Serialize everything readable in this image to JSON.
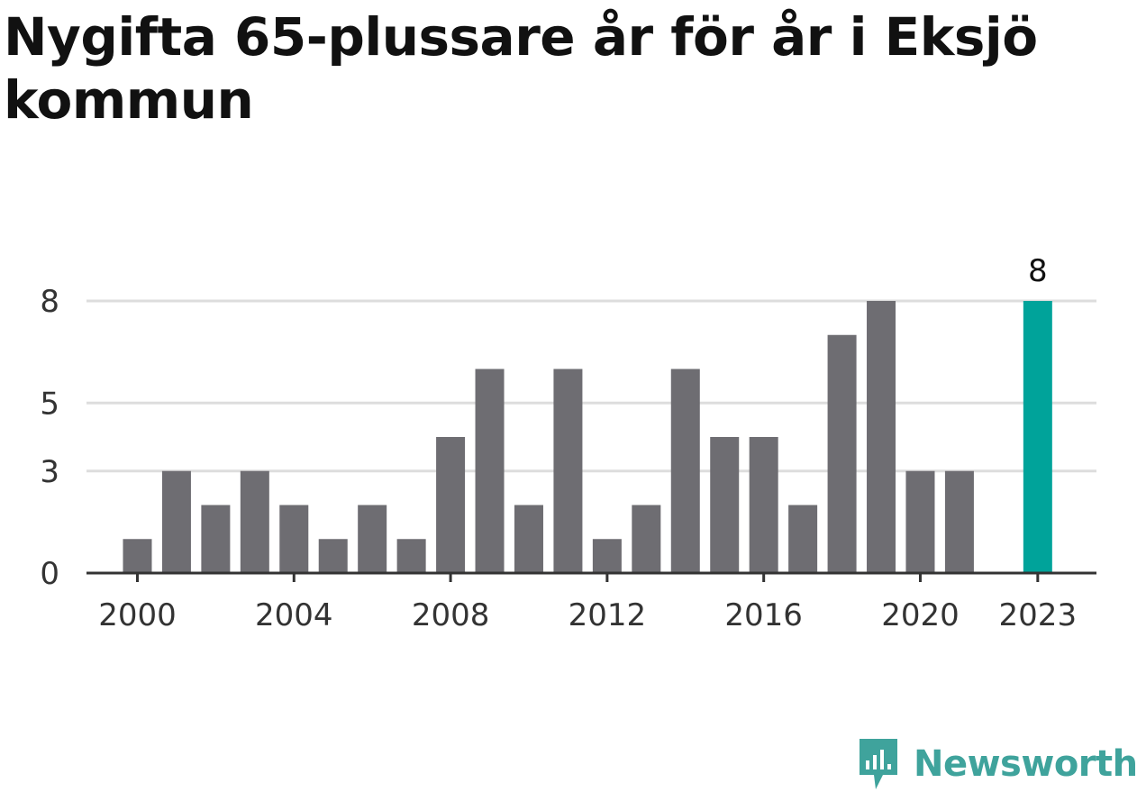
{
  "title": "Nygifta 65-plussare år för år i Eksjö kommun",
  "brand": {
    "name": "Newsworthy",
    "icon": "newsworthy-logo-icon",
    "color": "#3fa39c"
  },
  "colors": {
    "bar": "#6e6d72",
    "highlight": "#00a39a",
    "grid": "#dddddd",
    "axis": "#333333"
  },
  "chart_data": {
    "type": "bar",
    "categories": [
      2000,
      2001,
      2002,
      2003,
      2004,
      2005,
      2006,
      2007,
      2008,
      2009,
      2010,
      2011,
      2012,
      2013,
      2014,
      2015,
      2016,
      2017,
      2018,
      2019,
      2020,
      2021,
      2023
    ],
    "values": [
      1,
      3,
      2,
      3,
      2,
      1,
      2,
      1,
      4,
      6,
      2,
      6,
      1,
      2,
      6,
      4,
      4,
      2,
      7,
      8,
      3,
      3,
      8
    ],
    "highlight_index": 22,
    "data_labels": [
      {
        "x": 2023,
        "text": "8"
      }
    ],
    "x_ticks": [
      "2000",
      "2004",
      "2008",
      "2012",
      "2016",
      "2020",
      "2023"
    ],
    "y_ticks": [
      "0",
      "3",
      "5",
      "8"
    ],
    "ylim": [
      0,
      8
    ],
    "xlim": [
      1998.7,
      2024.5
    ],
    "grid": true,
    "legend": "none"
  }
}
